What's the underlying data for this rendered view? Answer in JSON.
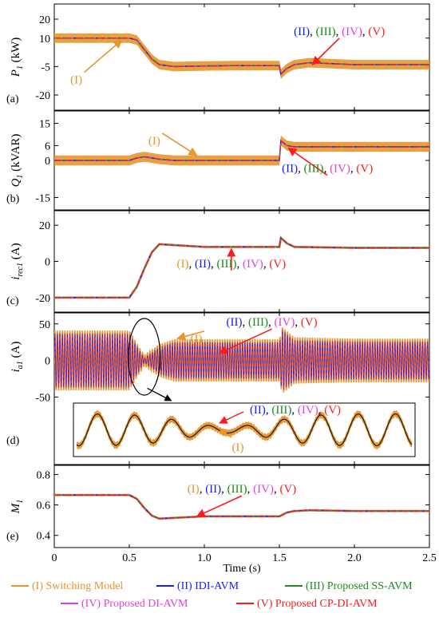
{
  "chart_data": [
    {
      "type": "line",
      "panel_label": "(a)",
      "ylabel_main": "P",
      "ylabel_sub": "1",
      "ylabel_unit": "(kW)",
      "ylim": [
        -28,
        28
      ],
      "yticks": [
        20,
        10,
        -5,
        -20
      ],
      "xlim": [
        0,
        2.5
      ],
      "series_avg": {
        "x": [
          0,
          0.5,
          0.55,
          0.6,
          0.65,
          0.7,
          0.8,
          1.0,
          1.2,
          1.5,
          1.51,
          1.55,
          1.6,
          1.7,
          1.8,
          2.0,
          2.5
        ],
        "y": [
          10,
          10,
          9,
          4,
          -1,
          -4,
          -5,
          -4.7,
          -4.5,
          -4.5,
          -9,
          -6,
          -4,
          -3,
          -3.3,
          -4,
          -4
        ]
      },
      "ripple": 2.5,
      "annotations": [
        {
          "text": "(I)",
          "color": "#e8952c",
          "arrow_from": [
            0.2,
            -8
          ],
          "arrow_to": [
            0.45,
            9
          ]
        },
        {
          "text_parts": [
            "(II)",
            ", ",
            "(III)",
            ", ",
            "(IV)",
            ", ",
            "(V)"
          ],
          "colors": [
            "#1a1aff",
            "#000000",
            "#1c8a1c",
            "#000000",
            "#e040e0",
            "#000000",
            "#ff1a1a"
          ],
          "arrow_from": [
            1.9,
            10
          ],
          "arrow_to": [
            1.72,
            -4
          ]
        }
      ]
    },
    {
      "type": "line",
      "panel_label": "(b)",
      "ylabel_main": "Q",
      "ylabel_sub": "1",
      "ylabel_unit": "(kVAR)",
      "ylim": [
        -20,
        20
      ],
      "yticks": [
        15,
        6,
        0,
        -15
      ],
      "xlim": [
        0,
        2.5
      ],
      "series_avg": {
        "x": [
          0,
          0.5,
          0.55,
          0.6,
          0.7,
          0.8,
          1.0,
          1.5,
          1.51,
          1.55,
          1.6,
          2.0,
          2.5
        ],
        "y": [
          0,
          0,
          1,
          1.5,
          0.5,
          0,
          0,
          0,
          8,
          6,
          5.5,
          5.5,
          5.5
        ]
      },
      "ripple": 2,
      "annotations": [
        {
          "text": "(I)",
          "color": "#e8952c",
          "arrow_from": [
            0.72,
            11
          ],
          "arrow_to": [
            0.95,
            2
          ]
        },
        {
          "text_parts": [
            "(II)",
            ", ",
            "(III)",
            ", ",
            "(IV)",
            ", ",
            "(V)"
          ],
          "colors": [
            "#1a1aff",
            "#000000",
            "#1c8a1c",
            "#000000",
            "#e040e0",
            "#000000",
            "#ff1a1a"
          ],
          "arrow_from": [
            1.82,
            -6
          ],
          "arrow_to": [
            1.56,
            5
          ]
        }
      ]
    },
    {
      "type": "line",
      "panel_label": "(c)",
      "ylabel_main": "i",
      "ylabel_sub": "rec1",
      "ylabel_unit": "(A)",
      "ylim": [
        -28,
        28
      ],
      "yticks": [
        20,
        0,
        -20
      ],
      "xlim": [
        0,
        2.5
      ],
      "series_avg": {
        "x": [
          0,
          0.5,
          0.55,
          0.6,
          0.65,
          0.7,
          0.8,
          1.0,
          1.5,
          1.51,
          1.55,
          1.6,
          2.0,
          2.5
        ],
        "y": [
          -20,
          -20,
          -14,
          -4,
          5,
          9.5,
          9,
          8,
          8,
          13,
          10,
          8,
          7.5,
          7.5
        ]
      },
      "ripple": 0,
      "annotations": [
        {
          "text_parts": [
            "(I)",
            ", ",
            "(II)",
            ", ",
            "(III)",
            ", ",
            "(IV)",
            ", ",
            "(V)"
          ],
          "colors": [
            "#e8952c",
            "#000000",
            "#1a1aff",
            "#000000",
            "#1c8a1c",
            "#000000",
            "#e040e0",
            "#000000",
            "#ff1a1a"
          ],
          "arrow_from": [
            1.18,
            -5
          ],
          "arrow_to": [
            1.18,
            7
          ]
        }
      ]
    },
    {
      "type": "line",
      "panel_label": "(d)",
      "ylabel_main": "i",
      "ylabel_sub": "a1",
      "ylabel_unit": "(A)",
      "ylim": [
        -55,
        65
      ],
      "yticks": [
        50,
        0,
        -50
      ],
      "xlim": [
        0,
        2.5
      ],
      "amplitude": {
        "x": [
          0,
          0.5,
          0.6,
          0.7,
          0.8,
          1.0,
          1.5,
          1.52,
          1.6,
          2.0,
          2.5
        ],
        "y": [
          40,
          40,
          3,
          20,
          27,
          27,
          27,
          45,
          30,
          28,
          28
        ]
      },
      "annotations": [
        {
          "text": "(I)",
          "color": "#e8952c",
          "arrow_from": [
            1.0,
            40
          ],
          "arrow_to": [
            0.82,
            30
          ]
        },
        {
          "text_parts": [
            "(II)",
            ", ",
            "(III)",
            ", ",
            "(IV)",
            ", ",
            "(V)"
          ],
          "colors": [
            "#1a1aff",
            "#000000",
            "#1c8a1c",
            "#000000",
            "#e040e0",
            "#000000",
            "#ff1a1a"
          ],
          "arrow_from": [
            1.45,
            43
          ],
          "arrow_to": [
            1.1,
            10
          ]
        }
      ],
      "inset_annotations": [
        {
          "text": "(I)",
          "color": "#e8952c"
        },
        {
          "text_parts": [
            "(II)",
            ", ",
            "(III)",
            ", ",
            "(IV)",
            ", ",
            "(V)"
          ],
          "colors": [
            "#1a1aff",
            "#000000",
            "#1c8a1c",
            "#000000",
            "#e040e0",
            "#000000",
            "#ff1a1a"
          ]
        }
      ]
    },
    {
      "type": "line",
      "panel_label": "(e)",
      "ylabel_main": "M",
      "ylabel_sub": "1",
      "ylabel_unit": "",
      "ylim": [
        0.32,
        0.86
      ],
      "yticks": [
        0.8,
        0.6,
        0.4
      ],
      "xlim": [
        0,
        2.5
      ],
      "xticks": [
        0,
        0.5,
        1.0,
        1.5,
        2.0,
        2.5
      ],
      "xtick_labels": [
        "0",
        "0.5",
        "1.0",
        "1.5",
        "2.0",
        "2.5"
      ],
      "xlabel": "Time (s)",
      "series_avg": {
        "x": [
          0,
          0.5,
          0.55,
          0.6,
          0.65,
          0.7,
          0.8,
          1.0,
          1.5,
          1.55,
          1.6,
          1.7,
          2.0,
          2.5
        ],
        "y": [
          0.665,
          0.665,
          0.64,
          0.58,
          0.53,
          0.51,
          0.515,
          0.525,
          0.525,
          0.55,
          0.56,
          0.565,
          0.56,
          0.56
        ]
      },
      "annotations": [
        {
          "text_parts": [
            "(I)",
            ", ",
            "(II)",
            ", ",
            "(III)",
            ", ",
            "(IV)",
            ", ",
            "(V)"
          ],
          "colors": [
            "#e8952c",
            "#000000",
            "#1a1aff",
            "#000000",
            "#1c8a1c",
            "#000000",
            "#e040e0",
            "#000000",
            "#ff1a1a"
          ],
          "arrow_from": [
            1.25,
            0.66
          ],
          "arrow_to": [
            0.95,
            0.525
          ]
        }
      ]
    }
  ],
  "legend": [
    {
      "label": "(I) Switching Model",
      "color": "#e8952c"
    },
    {
      "label": "(II) IDI-AVM",
      "color": "#1a1aff"
    },
    {
      "label": "(III) Proposed SS-AVM",
      "color": "#1c8a1c"
    },
    {
      "label": "(IV) Proposed DI-AVM",
      "color": "#e040e0"
    },
    {
      "label": "(V) Proposed CP-DI-AVM",
      "color": "#ff1a1a"
    }
  ],
  "colors": {
    "orange": "#e8952c",
    "blue": "#1a1aff",
    "green": "#1c8a1c",
    "magenta": "#e040e0",
    "red": "#ff1a1a"
  }
}
